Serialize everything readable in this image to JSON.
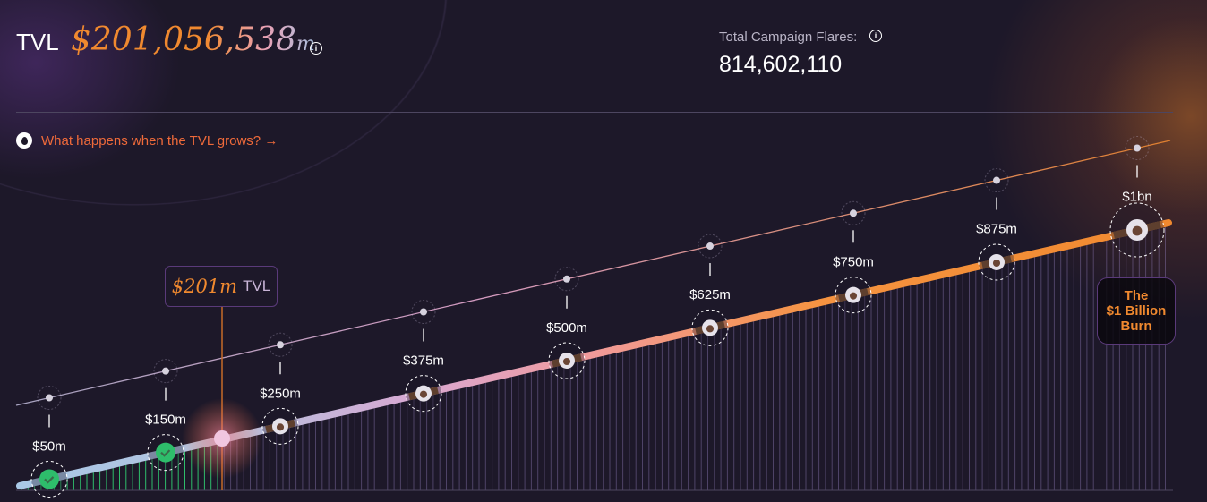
{
  "header": {
    "tvl_label": "TVL",
    "tvl_value": "$201,056,538",
    "tvl_unit": "m",
    "info_icon": "i",
    "flares_label": "Total Campaign Flares:",
    "flares_value": "814,602,110"
  },
  "cta": {
    "label": "What happens when the TVL grows? →"
  },
  "tooltip": {
    "amount": "$201m",
    "unit": "TVL"
  },
  "burn_badge": {
    "line1": "The",
    "line2": "$1 Billion",
    "line3": "Burn"
  },
  "progress": {
    "current_tvl_m": 201
  },
  "milestones": [
    {
      "label": "$50m",
      "value_m": 50,
      "achieved": true
    },
    {
      "label": "$150m",
      "value_m": 150,
      "achieved": true
    },
    {
      "label": "$250m",
      "value_m": 250,
      "achieved": false
    },
    {
      "label": "$375m",
      "value_m": 375,
      "achieved": false
    },
    {
      "label": "$500m",
      "value_m": 500,
      "achieved": false
    },
    {
      "label": "$625m",
      "value_m": 625,
      "achieved": false
    },
    {
      "label": "$750m",
      "value_m": 750,
      "achieved": false
    },
    {
      "label": "$875m",
      "value_m": 875,
      "achieved": false
    },
    {
      "label": "$1bn",
      "value_m": 1000,
      "achieved": false
    }
  ],
  "colors": {
    "accent": "#f0892f",
    "achieved": "#2ebd6b",
    "link": "#ef6a3a"
  }
}
